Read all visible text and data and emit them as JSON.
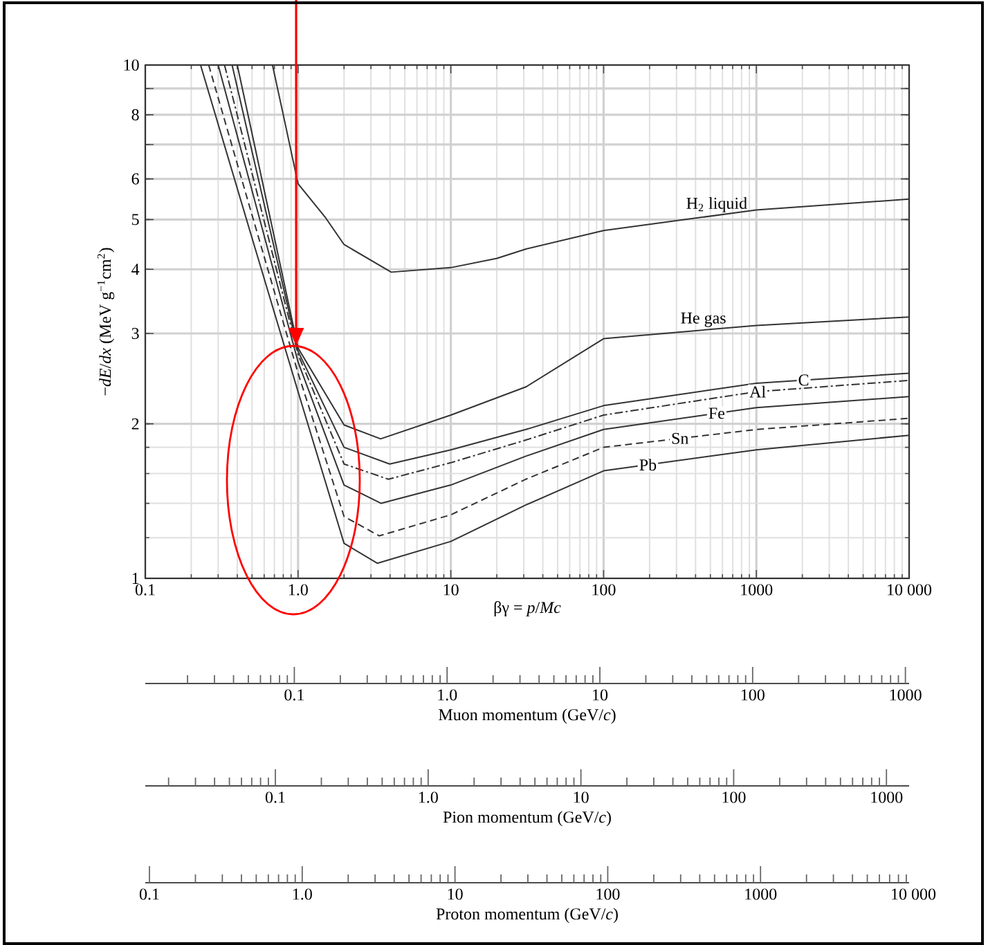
{
  "chart_data": [
    {
      "type": "line",
      "xlabel": "βγ = *p*/*Mc*",
      "ylabel": "−*dE*/*dx* (MeV g$^{−1}$cm$^{2}$)",
      "log": "xy",
      "grid": true,
      "xlim": [
        0.1,
        10000
      ],
      "xticks": [
        0.1,
        {
          "value": 1,
          "label": "1.0"
        },
        10,
        100,
        1000,
        {
          "value": 10000,
          "label": "10 000"
        }
      ],
      "ylim": [
        1,
        10
      ],
      "yticks": [
        1,
        2,
        3,
        4,
        5,
        6,
        {
          "value": 7,
          "label": null
        },
        8,
        {
          "value": 9,
          "label": null
        },
        10
      ],
      "series": [
        {
          "name": "H$_{2}$ liquid",
          "color": "#333333",
          "line_style": "solid",
          "x": [
            0.68,
            0.8,
            1,
            1.5,
            2,
            4.07,
            10,
            20,
            31,
            100,
            1000,
            10000
          ],
          "values": [
            10,
            8.0,
            5.87,
            5.06,
            4.47,
            3.95,
            4.03,
            4.2,
            4.38,
            4.76,
            5.22,
            5.48
          ]
        },
        {
          "name": "He gas",
          "color": "#333333",
          "line_style": "solid",
          "x": [
            0.4,
            0.5,
            1,
            2,
            3.47,
            10,
            31,
            100,
            1000,
            10000
          ],
          "values": [
            10,
            7.35,
            2.81,
            1.99,
            1.87,
            2.08,
            2.36,
            2.93,
            3.11,
            3.23
          ]
        },
        {
          "name": "C",
          "color": "#333333",
          "line_style": "solid",
          "x": [
            0.37,
            0.5,
            1,
            2,
            3.98,
            10,
            31,
            100,
            1000,
            10000
          ],
          "values": [
            10,
            6.78,
            2.77,
            1.8,
            1.67,
            1.78,
            1.95,
            2.17,
            2.4,
            2.51
          ]
        },
        {
          "name": "Al",
          "color": "#333333",
          "line_style": "dashdot",
          "x": [
            0.33,
            0.5,
            1,
            2,
            3.9,
            10,
            31,
            100,
            1000,
            10000
          ],
          "values": [
            10,
            6.15,
            2.73,
            1.67,
            1.56,
            1.68,
            1.86,
            2.08,
            2.31,
            2.43
          ]
        },
        {
          "name": "Fe",
          "color": "#333333",
          "line_style": "solid",
          "x": [
            0.3,
            0.5,
            1,
            2,
            3.5,
            10,
            31,
            100,
            1000,
            10000
          ],
          "values": [
            10,
            5.69,
            2.64,
            1.52,
            1.4,
            1.52,
            1.73,
            1.95,
            2.15,
            2.26
          ]
        },
        {
          "name": "Sn",
          "color": "#333333",
          "line_style": "dashed",
          "x": [
            0.26,
            0.5,
            1,
            2,
            3.4,
            10,
            31,
            100,
            1000,
            10000
          ],
          "values": [
            10,
            5.1,
            2.51,
            1.32,
            1.21,
            1.33,
            1.56,
            1.8,
            1.95,
            2.05
          ]
        },
        {
          "name": "Pb",
          "color": "#333333",
          "line_style": "solid",
          "x": [
            0.23,
            0.5,
            1,
            2,
            3.3,
            10,
            31,
            100,
            1000,
            10000
          ],
          "values": [
            10,
            4.6,
            2.31,
            1.17,
            1.07,
            1.18,
            1.39,
            1.62,
            1.78,
            1.9
          ]
        }
      ]
    },
    {
      "type": "other",
      "annotations": [
        "0.1",
        "1.0",
        "10",
        "100",
        "1000"
      ],
      "xlabel": "Muon momentum (GeV/*c*)"
    },
    {
      "type": "other",
      "annotations": [
        "0.1",
        "1.0",
        "10",
        "100",
        "1000"
      ],
      "xlabel": "Pion momentum (GeV/*c*)"
    },
    {
      "type": "other",
      "annotations": [
        "0.1",
        "1.0",
        "10",
        "100",
        "1000",
        "10 000"
      ],
      "xlabel": "Proton momentum (GeV/*c*)"
    }
  ]
}
